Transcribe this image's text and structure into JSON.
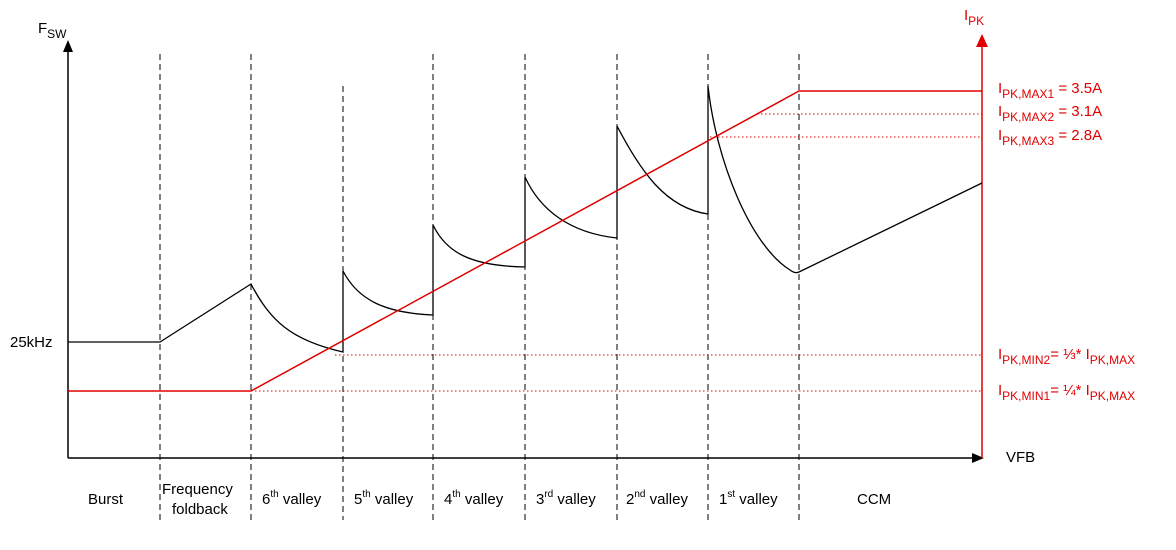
{
  "axes": {
    "y_left_main": "F",
    "y_left_sub": "SW",
    "y_right_main": "I",
    "y_right_sub": "PK",
    "x_label": "VFB",
    "tick_25k": "25kHz"
  },
  "regions": {
    "burst": "Burst",
    "freq_line1": "Frequency",
    "freq_line2": "foldback",
    "v6_num": "6",
    "v6_sup": "th",
    "v5_num": "5",
    "v5_sup": "th",
    "v4_num": "4",
    "v4_sup": "th",
    "v3_num": "3",
    "v3_sup": "rd",
    "v2_num": "2",
    "v2_sup": "nd",
    "v1_num": "1",
    "v1_sup": "st",
    "valley_word": " valley",
    "ccm": "CCM"
  },
  "ipk_labels": {
    "max1_i": "I",
    "max1_sub": "PK,MAX1",
    "max1_val": " = 3.5A",
    "max2_i": "I",
    "max2_sub": "PK,MAX2",
    "max2_val": " = 3.1A",
    "max3_i": "I",
    "max3_sub": "PK,MAX3",
    "max3_val": " = 2.8A",
    "min2_i": "I",
    "min2_sub": "PK,MIN2",
    "min2_val": "= ⅓* I",
    "min2_sub2": "PK,MAX",
    "min1_i": "I",
    "min1_sub": "PK,MIN1",
    "min1_val": "= ¼* I",
    "min1_sub2": "PK,MAX"
  },
  "colors": {
    "black": "#000000",
    "red": "#e00000"
  }
}
